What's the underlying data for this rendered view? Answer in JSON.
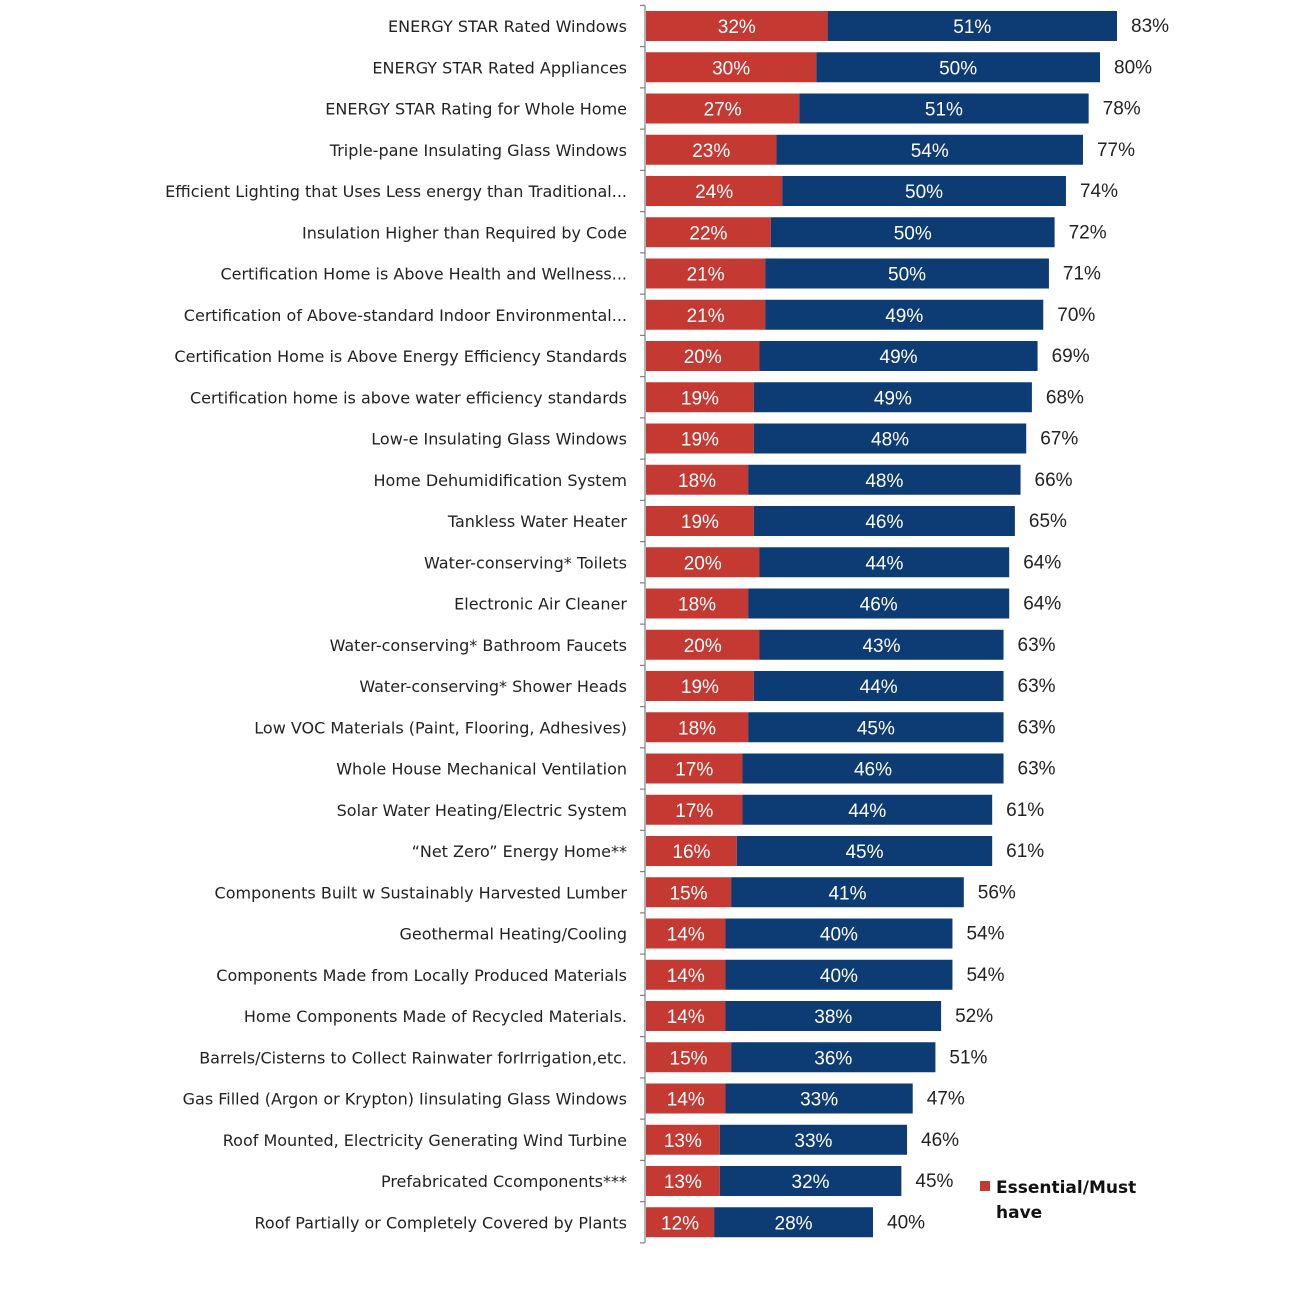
{
  "chart_data": {
    "type": "bar",
    "orientation": "horizontal",
    "stacked": true,
    "title": "",
    "xlabel": "",
    "ylabel": "",
    "xlim": [
      0,
      100
    ],
    "grid": false,
    "legend_position": "bottom-right",
    "colors": {
      "essential": "#c43a33",
      "desirable": "#0d3b73",
      "axis": "#7f7f7f"
    },
    "categories": [
      "ENERGY STAR Rated Windows",
      "ENERGY STAR Rated Appliances",
      "ENERGY STAR Rating for Whole Home",
      "Triple-pane Insulating Glass Windows",
      "Efficient Lighting that Uses Less energy than Traditional...",
      "Insulation Higher than Required by Code",
      "Certification Home is Above Health and Wellness...",
      "Certification of Above-standard Indoor Environmental...",
      "Certification Home is Above Energy Efficiency Standards",
      "Certification home is above water efficiency standards",
      "Low-e Insulating Glass Windows",
      "Home Dehumidification System",
      "Tankless Water Heater",
      "Water-conserving* Toilets",
      "Electronic Air Cleaner",
      "Water-conserving* Bathroom Faucets",
      "Water-conserving* Shower Heads",
      "Low VOC Materials (Paint, Flooring, Adhesives)",
      "Whole House Mechanical  Ventilation",
      "Solar Water Heating/Electric System",
      "“Net Zero” Energy Home**",
      "Components Built w Sustainably Harvested Lumber",
      "Geothermal Heating/Cooling",
      "Components Made from Locally Produced Materials",
      "Home Components Made of Recycled Materials.",
      "Barrels/Cisterns to Collect Rainwater forIrrigation,etc.",
      "Gas Filled (Argon or Krypton) Iinsulating Glass Windows",
      "Roof Mounted, Electricity Generating Wind Turbine",
      "Prefabricated Ccomponents***",
      "Roof Partially or Completely Covered by Plants"
    ],
    "series": [
      {
        "name": "Essential/Must have",
        "key": "essential",
        "values": [
          32,
          30,
          27,
          23,
          24,
          22,
          21,
          21,
          20,
          19,
          19,
          18,
          19,
          20,
          18,
          20,
          19,
          18,
          17,
          17,
          16,
          15,
          14,
          14,
          14,
          15,
          14,
          13,
          13,
          12
        ]
      },
      {
        "name": "",
        "key": "desirable",
        "values": [
          51,
          50,
          51,
          54,
          50,
          50,
          50,
          49,
          49,
          49,
          48,
          48,
          46,
          44,
          46,
          43,
          44,
          45,
          46,
          44,
          45,
          41,
          40,
          40,
          38,
          36,
          33,
          33,
          32,
          28
        ]
      }
    ],
    "totals": [
      83,
      80,
      78,
      77,
      74,
      72,
      71,
      70,
      69,
      68,
      67,
      66,
      65,
      64,
      64,
      63,
      63,
      63,
      63,
      61,
      61,
      56,
      54,
      54,
      52,
      51,
      47,
      46,
      45,
      40
    ],
    "value_suffix": "%",
    "legend": [
      {
        "label_line1": "Essential/Must",
        "label_line2": "have",
        "color_key": "essential"
      }
    ]
  }
}
